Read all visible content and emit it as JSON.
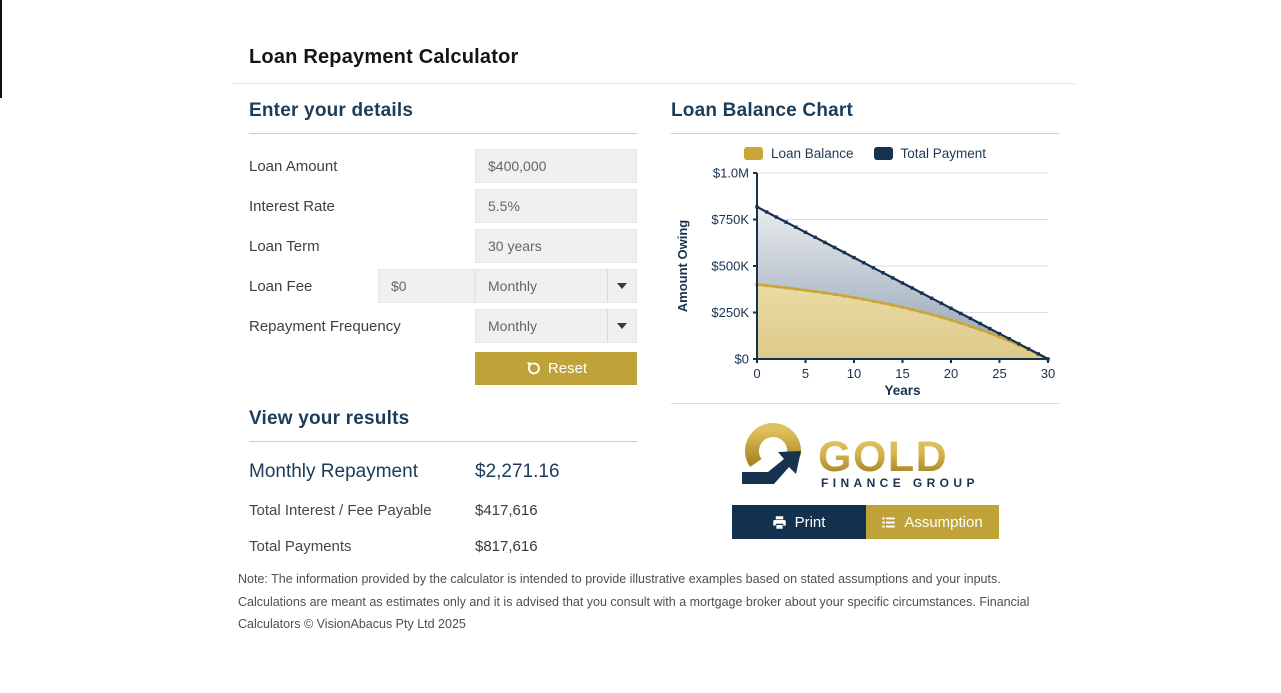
{
  "page": {
    "title": "Loan Repayment Calculator",
    "note": "Note: The information provided by the calculator is intended to provide illustrative examples based on stated assumptions and your inputs. Calculations are meant as estimates only and it is advised that you consult with a mortgage broker about your specific circumstances. Financial Calculators © VisionAbacus Pty Ltd 2025"
  },
  "colors": {
    "brand_gold": "#bfa338",
    "brand_navy": "#13304f",
    "heading_blue": "#1c3d59"
  },
  "form": {
    "heading": "Enter your details",
    "fields": {
      "loan_amount": {
        "label": "Loan Amount",
        "value": "$400,000"
      },
      "interest_rate": {
        "label": "Interest Rate",
        "value": "5.5%"
      },
      "loan_term": {
        "label": "Loan Term",
        "value": "30 years"
      },
      "loan_fee": {
        "label": "Loan Fee",
        "value": "$0",
        "frequency": "Monthly"
      },
      "repayment_frequency": {
        "label": "Repayment Frequency",
        "value": "Monthly"
      }
    },
    "reset_label": "Reset"
  },
  "results": {
    "heading": "View your results",
    "rows": [
      {
        "label": "Monthly Repayment",
        "value": "$2,271.16"
      },
      {
        "label": "Total Interest / Fee Payable",
        "value": "$417,616"
      },
      {
        "label": "Total Payments",
        "value": "$817,616"
      }
    ]
  },
  "chart_data": {
    "type": "area",
    "title": "Loan Balance Chart",
    "xlabel": "Years",
    "ylabel": "Amount Owing",
    "xlim": [
      0,
      30
    ],
    "ylim": [
      0,
      1000000
    ],
    "x_ticks": [
      0,
      5,
      10,
      15,
      20,
      25,
      30
    ],
    "y_ticks": [
      {
        "label": "$0",
        "value": 0
      },
      {
        "label": "$250K",
        "value": 250000
      },
      {
        "label": "$500K",
        "value": 500000
      },
      {
        "label": "$750K",
        "value": 750000
      },
      {
        "label": "$1.0M",
        "value": 1000000
      }
    ],
    "grid": "horizontal",
    "legend_position": "top",
    "x": [
      0,
      1,
      2,
      3,
      4,
      5,
      6,
      7,
      8,
      9,
      10,
      11,
      12,
      13,
      14,
      15,
      16,
      17,
      18,
      19,
      20,
      21,
      22,
      23,
      24,
      25,
      26,
      27,
      28,
      29,
      30
    ],
    "series": [
      {
        "name": "Loan Balance",
        "color": "#c9a637",
        "fill_top": "#eadca6",
        "fill_bottom": "#ddc98a",
        "values": [
          400000,
          394612,
          388919,
          382905,
          376552,
          369841,
          362751,
          355261,
          347349,
          338991,
          330161,
          320834,
          310980,
          300571,
          289574,
          277958,
          265686,
          252722,
          239026,
          224558,
          209274,
          193128,
          176072,
          158052,
          139017,
          118907,
          97663,
          75221,
          51514,
          26468,
          0
        ]
      },
      {
        "name": "Total Payment",
        "color": "#16324f",
        "fill_top": "#e9eced",
        "fill_bottom": "#8fa0b5",
        "values": [
          817616,
          790362,
          763108,
          735854,
          708601,
          681347,
          654093,
          626839,
          599585,
          572331,
          545077,
          517824,
          490570,
          463316,
          436062,
          408808,
          381554,
          354300,
          327046,
          299793,
          272539,
          245285,
          218031,
          190777,
          163523,
          136269,
          109016,
          81762,
          54508,
          27254,
          0
        ]
      }
    ]
  },
  "logo": {
    "brand": "GOLD",
    "tagline": "FINANCE GROUP"
  },
  "actions": {
    "print_label": "Print",
    "assumption_label": "Assumption"
  }
}
